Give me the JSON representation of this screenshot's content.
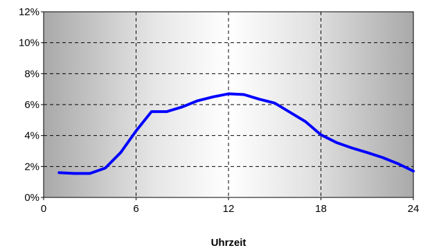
{
  "chart_data": {
    "type": "line",
    "title": "",
    "xlabel": "Uhrzeit",
    "ylabel": "",
    "xlim": [
      0,
      24
    ],
    "ylim": [
      0,
      0.12
    ],
    "x_ticks": [
      "0",
      "6",
      "12",
      "18",
      "24"
    ],
    "y_ticks": [
      "0%",
      "2%",
      "4%",
      "6%",
      "8%",
      "10%",
      "12%"
    ],
    "grid": "dashed, vertical at 6/12/18 and horizontal at each 2%",
    "background": "horizontal gradient: grey at edges, white toward midday",
    "series": [
      {
        "color": "#0000ff",
        "x": [
          1,
          2,
          3,
          4,
          5,
          6,
          7,
          8,
          9,
          10,
          11,
          12,
          13,
          14,
          15,
          16,
          17,
          18,
          19,
          20,
          21,
          22,
          23,
          24
        ],
        "y": [
          0.016,
          0.0155,
          0.0155,
          0.019,
          0.029,
          0.043,
          0.0555,
          0.0555,
          0.0585,
          0.0625,
          0.065,
          0.067,
          0.0665,
          0.0635,
          0.061,
          0.055,
          0.049,
          0.0405,
          0.0355,
          0.032,
          0.029,
          0.0258,
          0.0218,
          0.017
        ]
      }
    ]
  }
}
